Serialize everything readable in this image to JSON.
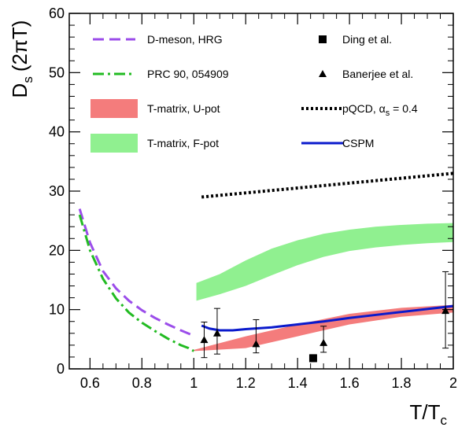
{
  "chart_data": {
    "type": "line",
    "xlabel": "T/T",
    "xlabel_sub": "c",
    "ylabel": "D",
    "ylabel_sub": "s",
    "ylabel_unit": "(2πT)",
    "xlim": [
      0.52,
      2.0
    ],
    "ylim": [
      0,
      60
    ],
    "x_ticks": [
      0.6,
      0.8,
      1.0,
      1.2,
      1.4,
      1.6,
      1.8,
      2.0
    ],
    "x_tick_labels": [
      "0.6",
      "0.8",
      "1",
      "1.2",
      "1.4",
      "1.6",
      "1.8",
      "2"
    ],
    "y_ticks": [
      0,
      10,
      20,
      30,
      40,
      50,
      60
    ],
    "y_tick_labels": [
      "0",
      "10",
      "20",
      "30",
      "40",
      "50",
      "60"
    ],
    "series": [
      {
        "name": "D-meson, HRG",
        "kind": "line",
        "style": "dashed",
        "color": "#9b4dea",
        "points": [
          [
            0.56,
            27.0
          ],
          [
            0.6,
            21.3
          ],
          [
            0.65,
            16.5
          ],
          [
            0.7,
            13.6
          ],
          [
            0.75,
            11.5
          ],
          [
            0.8,
            9.9
          ],
          [
            0.85,
            8.6
          ],
          [
            0.9,
            7.5
          ],
          [
            0.95,
            6.5
          ],
          [
            1.0,
            5.6
          ]
        ]
      },
      {
        "name": "PRC 90, 054909",
        "kind": "line",
        "style": "dashdot",
        "color": "#22bb22",
        "points": [
          [
            0.56,
            26.0
          ],
          [
            0.6,
            20.0
          ],
          [
            0.65,
            15.2
          ],
          [
            0.7,
            11.9
          ],
          [
            0.75,
            9.5
          ],
          [
            0.8,
            7.8
          ],
          [
            0.85,
            6.4
          ],
          [
            0.9,
            5.1
          ],
          [
            0.95,
            4.0
          ],
          [
            0.98,
            3.5
          ],
          [
            1.0,
            3.0
          ]
        ]
      },
      {
        "name": "T-matrix, U-pot",
        "kind": "band",
        "color": "#f47c7c",
        "x": [
          1.0,
          1.2,
          1.4,
          1.6,
          1.8,
          2.0
        ],
        "lower": [
          3.0,
          3.5,
          5.5,
          7.5,
          8.8,
          9.5
        ],
        "upper": [
          3.2,
          5.5,
          7.5,
          9.3,
          10.3,
          10.8
        ]
      },
      {
        "name": "T-matrix, F-pot",
        "kind": "band",
        "color": "#90f090",
        "x": [
          1.01,
          1.1,
          1.2,
          1.3,
          1.4,
          1.5,
          1.6,
          1.7,
          1.8,
          1.9,
          2.0
        ],
        "lower": [
          11.5,
          12.6,
          14.0,
          15.8,
          17.5,
          18.9,
          19.9,
          20.5,
          20.9,
          21.2,
          21.4
        ],
        "upper": [
          14.5,
          16.0,
          18.3,
          20.3,
          21.7,
          22.8,
          23.5,
          24.0,
          24.3,
          24.5,
          24.6
        ]
      },
      {
        "name": "Ding et al.",
        "kind": "marker",
        "marker": "square",
        "color": "#000000",
        "points": [
          [
            1.46,
            1.8
          ]
        ],
        "err": [
          0.6
        ]
      },
      {
        "name": "Banerjee et al.",
        "kind": "marker",
        "marker": "triangle",
        "color": "#000000",
        "points": [
          [
            1.04,
            4.9
          ],
          [
            1.09,
            6.0
          ],
          [
            1.24,
            4.2
          ],
          [
            1.5,
            4.4
          ],
          [
            1.97,
            9.8
          ]
        ],
        "err_low": [
          3.0,
          3.5,
          1.5,
          1.6,
          6.3
        ],
        "err_high": [
          3.0,
          4.2,
          4.1,
          2.8,
          6.6
        ]
      },
      {
        "name": "pQCD, α_s = 0.4",
        "kind": "line",
        "style": "dotted",
        "color": "#000000",
        "points": [
          [
            1.03,
            29.0
          ],
          [
            2.0,
            33.0
          ]
        ]
      },
      {
        "name": "CSPM",
        "kind": "line",
        "style": "solid",
        "color": "#0a1acc",
        "points": [
          [
            1.03,
            7.3
          ],
          [
            1.06,
            6.8
          ],
          [
            1.1,
            6.5
          ],
          [
            1.15,
            6.5
          ],
          [
            1.2,
            6.7
          ],
          [
            1.3,
            7.0
          ],
          [
            1.4,
            7.5
          ],
          [
            1.5,
            8.0
          ],
          [
            1.6,
            8.6
          ],
          [
            1.7,
            9.1
          ],
          [
            1.8,
            9.6
          ],
          [
            1.9,
            10.1
          ],
          [
            2.0,
            10.6
          ]
        ]
      }
    ],
    "legend": {
      "left": [
        {
          "label": "D-meson, HRG",
          "series": 0
        },
        {
          "label": "PRC 90, 054909",
          "series": 1
        },
        {
          "label": "T-matrix, U-pot",
          "series": 2
        },
        {
          "label": "T-matrix, F-pot",
          "series": 3
        }
      ],
      "right": [
        {
          "label": "Ding et al.",
          "series": 4
        },
        {
          "label": "Banerjee et al.",
          "series": 5
        },
        {
          "label": "pQCD, α",
          "label_sub": "s",
          "label_tail": " = 0.4",
          "series": 6
        },
        {
          "label": "CSPM",
          "series": 7
        }
      ]
    }
  }
}
